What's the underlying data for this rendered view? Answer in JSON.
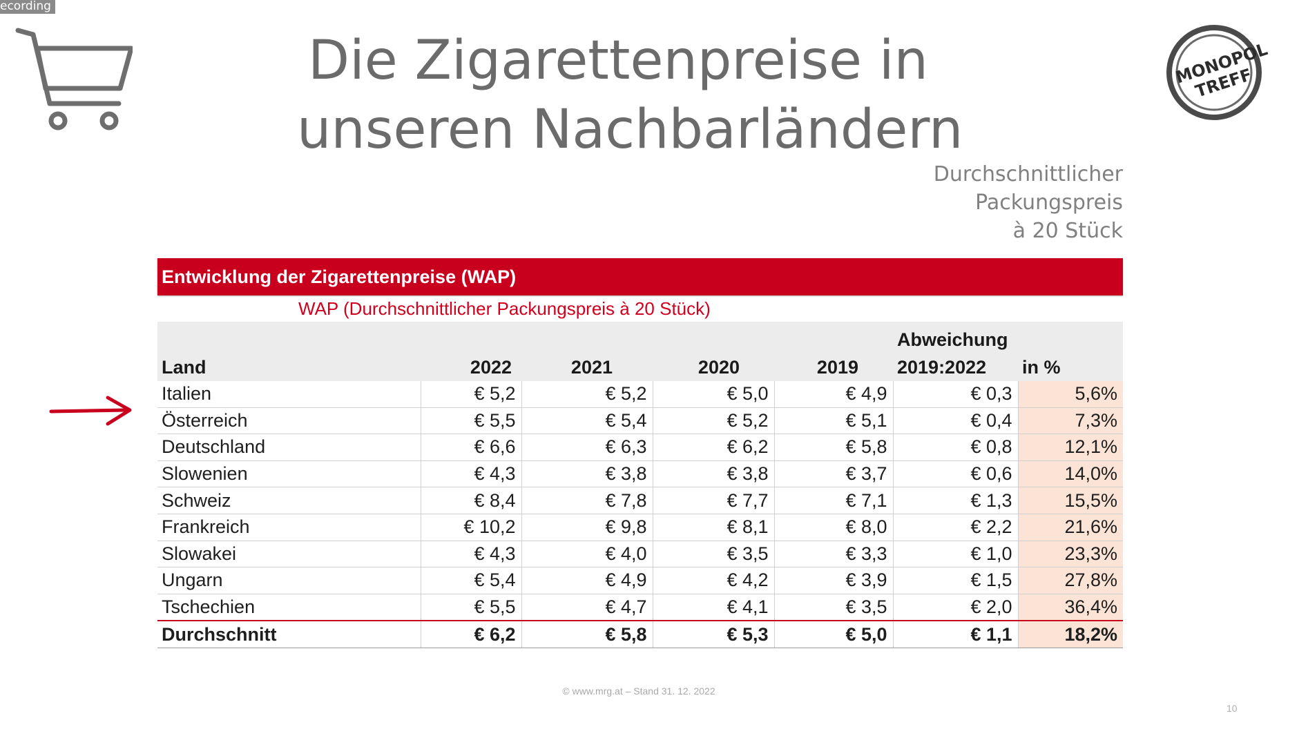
{
  "recording_label": "ecording",
  "title_lines": [
    "Die Zigarettenpreise in",
    "unseren Nachbarländern"
  ],
  "subtitle_lines": [
    "Durchschnittlicher",
    "Packungspreis",
    "à 20 Stück"
  ],
  "logo": {
    "icon": "monopol-treff-logo",
    "line1": "MONOPOL",
    "line2": "TREFF"
  },
  "table": {
    "header": "Entwicklung der Zigarettenpreise (WAP)",
    "subheader": "WAP (Durchschnittlicher Packungspreis à 20 Stück)",
    "columns": {
      "land": "Land",
      "y2022": "2022",
      "y2021": "2021",
      "y2020": "2020",
      "y2019": "2019",
      "abw_line1": "Abweichung",
      "abw_line2": "2019:2022",
      "pct": "in %"
    },
    "rows": [
      {
        "land": "Italien",
        "y2022": "€ 5,2",
        "y2021": "€ 5,2",
        "y2020": "€ 5,0",
        "y2019": "€ 4,9",
        "abw": "€ 0,3",
        "pct": "5,6%"
      },
      {
        "land": "Österreich",
        "y2022": "€ 5,5",
        "y2021": "€ 5,4",
        "y2020": "€ 5,2",
        "y2019": "€ 5,1",
        "abw": "€ 0,4",
        "pct": "7,3%"
      },
      {
        "land": "Deutschland",
        "y2022": "€ 6,6",
        "y2021": "€ 6,3",
        "y2020": "€ 6,2",
        "y2019": "€ 5,8",
        "abw": "€ 0,8",
        "pct": "12,1%"
      },
      {
        "land": "Slowenien",
        "y2022": "€ 4,3",
        "y2021": "€ 3,8",
        "y2020": "€ 3,8",
        "y2019": "€ 3,7",
        "abw": "€ 0,6",
        "pct": "14,0%"
      },
      {
        "land": "Schweiz",
        "y2022": "€ 8,4",
        "y2021": "€ 7,8",
        "y2020": "€ 7,7",
        "y2019": "€ 7,1",
        "abw": "€ 1,3",
        "pct": "15,5%"
      },
      {
        "land": "Frankreich",
        "y2022": "€ 10,2",
        "y2021": "€ 9,8",
        "y2020": "€ 8,1",
        "y2019": "€ 8,0",
        "abw": "€ 2,2",
        "pct": "21,6%"
      },
      {
        "land": "Slowakei",
        "y2022": "€ 4,3",
        "y2021": "€ 4,0",
        "y2020": "€ 3,5",
        "y2019": "€ 3,3",
        "abw": "€ 1,0",
        "pct": "23,3%"
      },
      {
        "land": "Ungarn",
        "y2022": "€ 5,4",
        "y2021": "€ 4,9",
        "y2020": "€ 4,2",
        "y2019": "€ 3,9",
        "abw": "€ 1,5",
        "pct": "27,8%"
      },
      {
        "land": "Tschechien",
        "y2022": "€ 5,5",
        "y2021": "€ 4,7",
        "y2020": "€ 4,1",
        "y2019": "€ 3,5",
        "abw": "€ 2,0",
        "pct": "36,4%"
      }
    ],
    "average": {
      "land": "Durchschnitt",
      "y2022": "€ 6,2",
      "y2021": "€ 5,8",
      "y2020": "€ 5,3",
      "y2019": "€ 5,0",
      "abw": "€ 1,1",
      "pct": "18,2%"
    }
  },
  "highlight_row": "Österreich",
  "accent_color": "#c8001e",
  "pct_cell_color": "#fbe4d5",
  "footer": "© www.mrg.at – Stand 31. 12. 2022",
  "page_number": "10"
}
